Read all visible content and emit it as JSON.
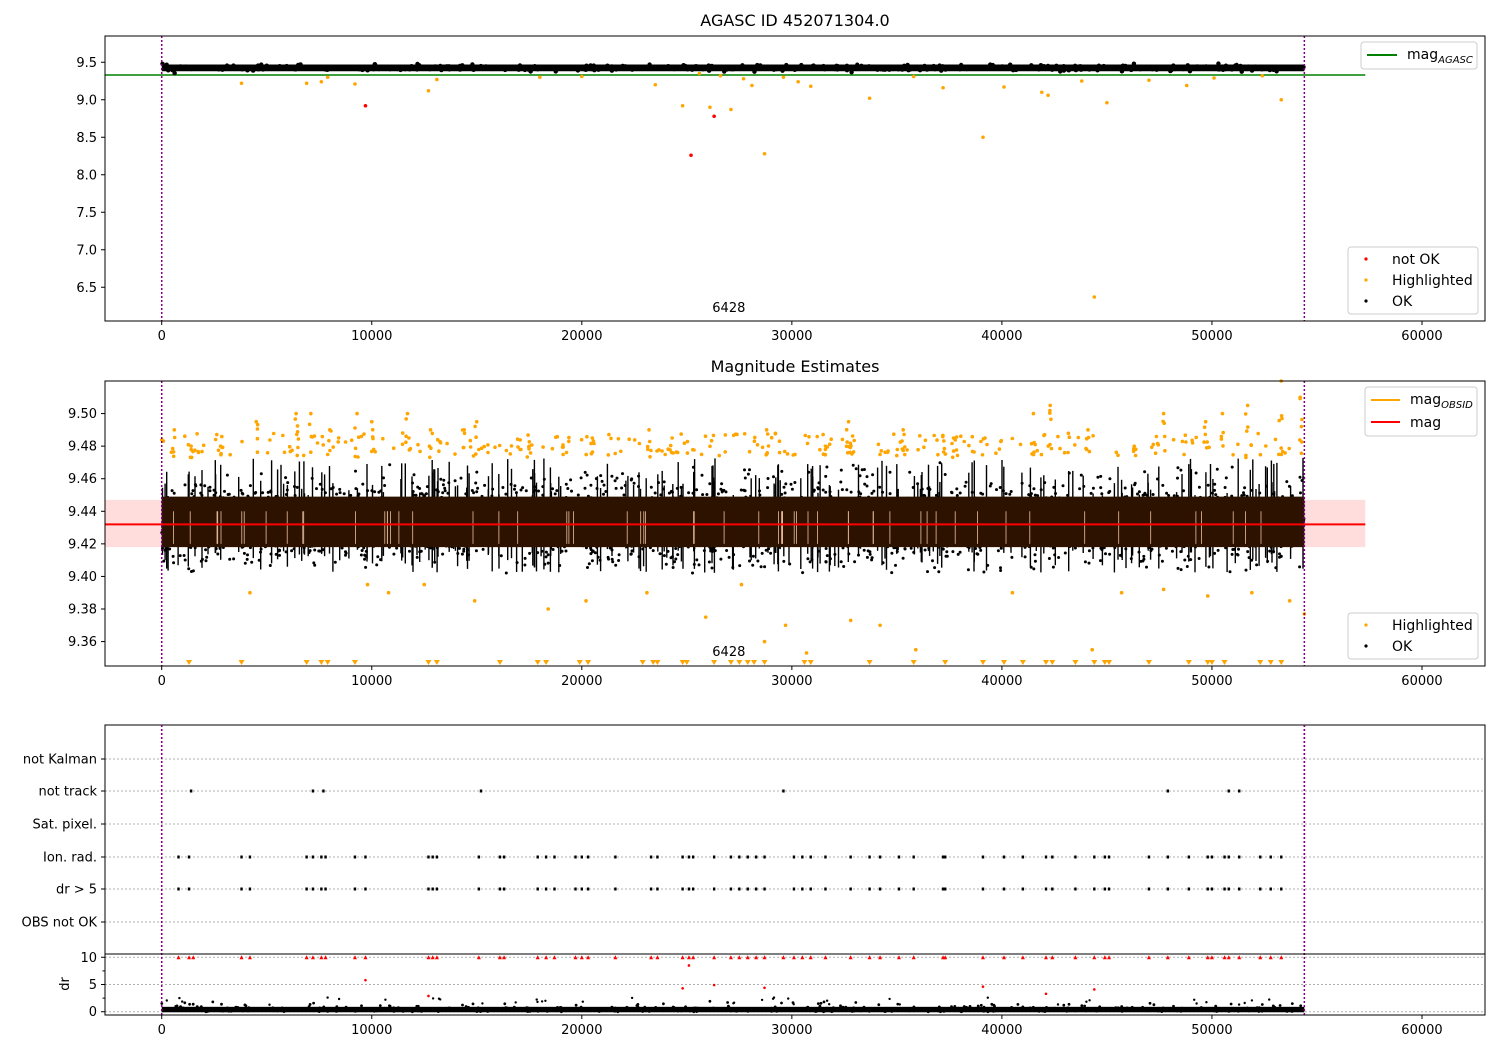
{
  "chart_data": [
    {
      "id": "top",
      "type": "scatter",
      "title": "AGASC ID 452071304.0",
      "xlim": [
        -2700,
        63000
      ],
      "ylim": [
        6.05,
        9.85
      ],
      "x_ticks": [
        0,
        10000,
        20000,
        30000,
        40000,
        50000,
        60000
      ],
      "x_tick_labels": [
        "0",
        "10000",
        "20000",
        "30000",
        "40000",
        "50000",
        "60000"
      ],
      "y_ticks": [
        6.5,
        7.0,
        7.5,
        8.0,
        8.5,
        9.0,
        9.5
      ],
      "y_tick_labels": [
        "6.5",
        "7.0",
        "7.5",
        "8.0",
        "8.5",
        "9.0",
        "9.5"
      ],
      "vlines": [
        0,
        54400
      ],
      "vline_color": "#800080",
      "annotation": {
        "text": "6428",
        "x": 27000,
        "y": 6.17
      },
      "hline": {
        "name": "mag_AGASC",
        "y": 9.33,
        "x": [
          -2700,
          57300
        ],
        "color": "#008000"
      },
      "ok_band": {
        "x": [
          0,
          54400
        ],
        "y": [
          9.38,
          9.47
        ],
        "color": "#000000"
      },
      "series": [
        {
          "name": "not OK",
          "color": "#ff0000",
          "points": [
            [
              9700,
              8.92
            ],
            [
              25200,
              8.26
            ],
            [
              26300,
              8.78
            ]
          ]
        },
        {
          "name": "Highlighted",
          "color": "#ffa500",
          "points": [
            [
              3800,
              9.22
            ],
            [
              6900,
              9.22
            ],
            [
              7600,
              9.24
            ],
            [
              7900,
              9.3
            ],
            [
              9200,
              9.21
            ],
            [
              12700,
              9.12
            ],
            [
              13100,
              9.27
            ],
            [
              18000,
              9.3
            ],
            [
              20000,
              9.31
            ],
            [
              23500,
              9.2
            ],
            [
              24800,
              8.92
            ],
            [
              25600,
              9.35
            ],
            [
              26100,
              8.9
            ],
            [
              26600,
              9.32
            ],
            [
              27100,
              8.87
            ],
            [
              27700,
              9.28
            ],
            [
              28100,
              9.19
            ],
            [
              28700,
              8.28
            ],
            [
              29600,
              9.3
            ],
            [
              30300,
              9.24
            ],
            [
              30900,
              9.18
            ],
            [
              33700,
              9.02
            ],
            [
              35800,
              9.31
            ],
            [
              37200,
              9.16
            ],
            [
              39100,
              8.5
            ],
            [
              40100,
              9.17
            ],
            [
              41900,
              9.1
            ],
            [
              42200,
              9.06
            ],
            [
              43800,
              9.25
            ],
            [
              44400,
              6.37
            ],
            [
              45000,
              8.96
            ],
            [
              47000,
              9.26
            ],
            [
              48800,
              9.19
            ],
            [
              50100,
              9.29
            ],
            [
              52400,
              9.32
            ],
            [
              53300,
              9.0
            ]
          ]
        },
        {
          "name": "OK",
          "color": "#000000",
          "points": []
        }
      ],
      "legend_line": [
        "mag_AGASC"
      ],
      "legend_points": [
        "not OK",
        "Highlighted",
        "OK"
      ]
    },
    {
      "id": "middle",
      "type": "scatter",
      "title": "Magnitude Estimates",
      "xlim": [
        -2700,
        63000
      ],
      "ylim": [
        9.345,
        9.52
      ],
      "x_ticks": [
        0,
        10000,
        20000,
        30000,
        40000,
        50000,
        60000
      ],
      "x_tick_labels": [
        "0",
        "10000",
        "20000",
        "30000",
        "40000",
        "50000",
        "60000"
      ],
      "y_ticks": [
        9.36,
        9.38,
        9.4,
        9.42,
        9.44,
        9.46,
        9.48,
        9.5
      ],
      "y_tick_labels": [
        "9.36",
        "9.38",
        "9.40",
        "9.42",
        "9.44",
        "9.46",
        "9.48",
        "9.50"
      ],
      "vlines": [
        0,
        54400
      ],
      "vline_color": "#800080",
      "annotation": {
        "text": "6428",
        "x": 27000,
        "y": 9.351
      },
      "mag_line": {
        "name": "mag",
        "y": 9.432,
        "x": [
          -2700,
          57300
        ],
        "color": "#ff0000"
      },
      "mag_band": {
        "y": [
          9.418,
          9.447
        ],
        "x": [
          -2700,
          57300
        ],
        "color": "#ffdddd"
      },
      "obsid_line": {
        "name": "mag_OBSID",
        "color": "#ffa500"
      },
      "dense_band": {
        "x": [
          0,
          54400
        ],
        "y": [
          9.418,
          9.449
        ],
        "color": "#2d1200"
      },
      "ok_range": [
        9.402,
        9.472
      ],
      "highlighted_low_markers_x": [
        1300,
        3800,
        6900,
        7600,
        7900,
        9200,
        12700,
        13100,
        16100,
        17900,
        18300,
        19900,
        20300,
        22900,
        23400,
        23600,
        24800,
        25000,
        26300,
        27100,
        27500,
        27900,
        28200,
        28700,
        30600,
        30900,
        33700,
        35800,
        37300,
        39100,
        40100,
        41000,
        42100,
        42400,
        43500,
        44400,
        44900,
        45100,
        47000,
        48900,
        49800,
        50000,
        50600,
        52300,
        52800,
        53300
      ],
      "highlighted_high_points": [
        [
          600,
          9.49
        ],
        [
          1400,
          9.48
        ],
        [
          2800,
          9.48
        ],
        [
          4500,
          9.495
        ],
        [
          6400,
          9.5
        ],
        [
          7100,
          9.5
        ],
        [
          8000,
          9.49
        ],
        [
          9300,
          9.5
        ],
        [
          10000,
          9.495
        ],
        [
          11700,
          9.5
        ],
        [
          12800,
          9.49
        ],
        [
          14400,
          9.49
        ],
        [
          15000,
          9.495
        ],
        [
          17500,
          9.48
        ],
        [
          20500,
          9.485
        ],
        [
          23200,
          9.49
        ],
        [
          24300,
          9.485
        ],
        [
          28800,
          9.49
        ],
        [
          31600,
          9.48
        ],
        [
          32700,
          9.495
        ],
        [
          35300,
          9.49
        ],
        [
          37700,
          9.485
        ],
        [
          41500,
          9.5
        ],
        [
          42300,
          9.505
        ],
        [
          44100,
          9.49
        ],
        [
          46300,
          9.48
        ],
        [
          47700,
          9.5
        ],
        [
          49700,
          9.495
        ],
        [
          50500,
          9.5
        ],
        [
          51700,
          9.505
        ],
        [
          53300,
          9.52
        ],
        [
          54200,
          9.51
        ]
      ],
      "highlighted_low_points": [
        [
          4200,
          9.39
        ],
        [
          9800,
          9.395
        ],
        [
          10800,
          9.39
        ],
        [
          12500,
          9.395
        ],
        [
          14900,
          9.385
        ],
        [
          18400,
          9.38
        ],
        [
          20200,
          9.385
        ],
        [
          23100,
          9.39
        ],
        [
          25900,
          9.375
        ],
        [
          27600,
          9.395
        ],
        [
          28700,
          9.36
        ],
        [
          29700,
          9.37
        ],
        [
          30700,
          9.353
        ],
        [
          32800,
          9.373
        ],
        [
          34200,
          9.37
        ],
        [
          35900,
          9.355
        ],
        [
          40500,
          9.39
        ],
        [
          44300,
          9.355
        ],
        [
          45700,
          9.39
        ],
        [
          47700,
          9.392
        ],
        [
          49800,
          9.388
        ],
        [
          51900,
          9.39
        ],
        [
          53700,
          9.385
        ],
        [
          54400,
          9.377
        ]
      ],
      "legend_line": [
        "mag_OBSID",
        "mag"
      ],
      "legend_points": [
        "Highlighted",
        "OK"
      ]
    },
    {
      "id": "flags",
      "type": "scatter",
      "xlim": [
        -2700,
        63000
      ],
      "vlines": [
        0,
        54400
      ],
      "vline_color": "#800080",
      "categories": [
        "not Kalman",
        "not track",
        "Sat. pixel.",
        "Ion. rad.",
        "dr > 5",
        "OBS not OK"
      ],
      "flag_points": {
        "not Kalman": [],
        "not track": [
          1400,
          7200,
          7700,
          15200,
          29600,
          47900,
          50800,
          51300
        ],
        "Sat. pixel.": [],
        "Ion. rad.": [
          800,
          1300,
          3800,
          4200,
          6900,
          7200,
          7600,
          7800,
          9200,
          9700,
          12700,
          12900,
          13100,
          15100,
          16100,
          16300,
          17900,
          18300,
          18700,
          19700,
          20000,
          20300,
          21600,
          23300,
          23600,
          24800,
          25100,
          25300,
          26300,
          27100,
          27500,
          27900,
          28300,
          28700,
          30100,
          30500,
          30900,
          31600,
          32800,
          33700,
          34200,
          35100,
          35800,
          37200,
          37300,
          39100,
          40100,
          41000,
          42100,
          42400,
          43500,
          44400,
          44900,
          45100,
          47000,
          47900,
          48900,
          49800,
          50000,
          50600,
          50800,
          51300,
          52300,
          52800,
          53300
        ],
        "dr > 5": [
          800,
          1300,
          3800,
          4200,
          6900,
          7200,
          7600,
          7800,
          9200,
          9700,
          12700,
          12900,
          13100,
          15100,
          16100,
          16300,
          17900,
          18300,
          18700,
          19700,
          20000,
          20300,
          21600,
          23300,
          23600,
          24800,
          25100,
          25300,
          26300,
          27100,
          27500,
          27900,
          28300,
          28700,
          30100,
          30500,
          30900,
          31600,
          32800,
          33700,
          34200,
          35100,
          35800,
          37200,
          37300,
          39100,
          40100,
          41000,
          42100,
          42400,
          43500,
          44400,
          44900,
          45100,
          47000,
          47900,
          48900,
          49800,
          50000,
          50600,
          50800,
          51300,
          52300,
          52800,
          53300
        ],
        "OBS not OK": []
      }
    },
    {
      "id": "dr",
      "type": "scatter",
      "ylabel": "dr",
      "xlim": [
        -2700,
        63000
      ],
      "ylim": [
        -0.6,
        10.6
      ],
      "x_ticks": [
        0,
        10000,
        20000,
        30000,
        40000,
        50000,
        60000
      ],
      "x_tick_labels": [
        "0",
        "10000",
        "20000",
        "30000",
        "40000",
        "50000",
        "60000"
      ],
      "y_ticks": [
        0,
        5,
        10
      ],
      "y_tick_labels": [
        "0",
        "5",
        "10"
      ],
      "vlines": [
        0,
        54400
      ],
      "vline_color": "#800080",
      "clipped_x": [
        800,
        1300,
        1500,
        3800,
        4200,
        6900,
        7200,
        7600,
        7800,
        9200,
        9700,
        12700,
        12900,
        13100,
        15100,
        16100,
        16300,
        17900,
        18300,
        18700,
        19700,
        20000,
        20300,
        21600,
        23300,
        23600,
        24800,
        25100,
        25300,
        26300,
        27100,
        27500,
        27900,
        28300,
        28700,
        29600,
        30100,
        30500,
        30900,
        31600,
        32800,
        33700,
        34200,
        35100,
        35800,
        37200,
        37300,
        39100,
        40100,
        41000,
        42100,
        42400,
        43500,
        44400,
        44900,
        45100,
        47000,
        47900,
        48900,
        49800,
        50000,
        50600,
        50800,
        51300,
        52300,
        52800,
        53300
      ],
      "red_points": [
        [
          9700,
          5.8
        ],
        [
          12700,
          2.9
        ],
        [
          24800,
          4.3
        ],
        [
          25100,
          8.5
        ],
        [
          26300,
          4.9
        ],
        [
          28700,
          4.4
        ],
        [
          39100,
          4.6
        ],
        [
          42100,
          3.3
        ],
        [
          44400,
          4.1
        ]
      ],
      "ok_range": [
        0,
        1.2
      ]
    }
  ],
  "legends": {
    "top_line": "mag",
    "top_line_sub": "AGASC",
    "top_points": [
      "not OK",
      "Highlighted",
      "OK"
    ],
    "middle_line1": "mag",
    "middle_line1_sub": "OBSID",
    "middle_line2": "mag",
    "middle_points": [
      "Highlighted",
      "OK"
    ]
  },
  "colors": {
    "not_ok": "#ff0000",
    "highlighted": "#ffa500",
    "ok": "#000000",
    "agasc_line": "#008000",
    "mag_line": "#ff0000",
    "vline": "#800080",
    "grid": "#b0b0b0"
  }
}
